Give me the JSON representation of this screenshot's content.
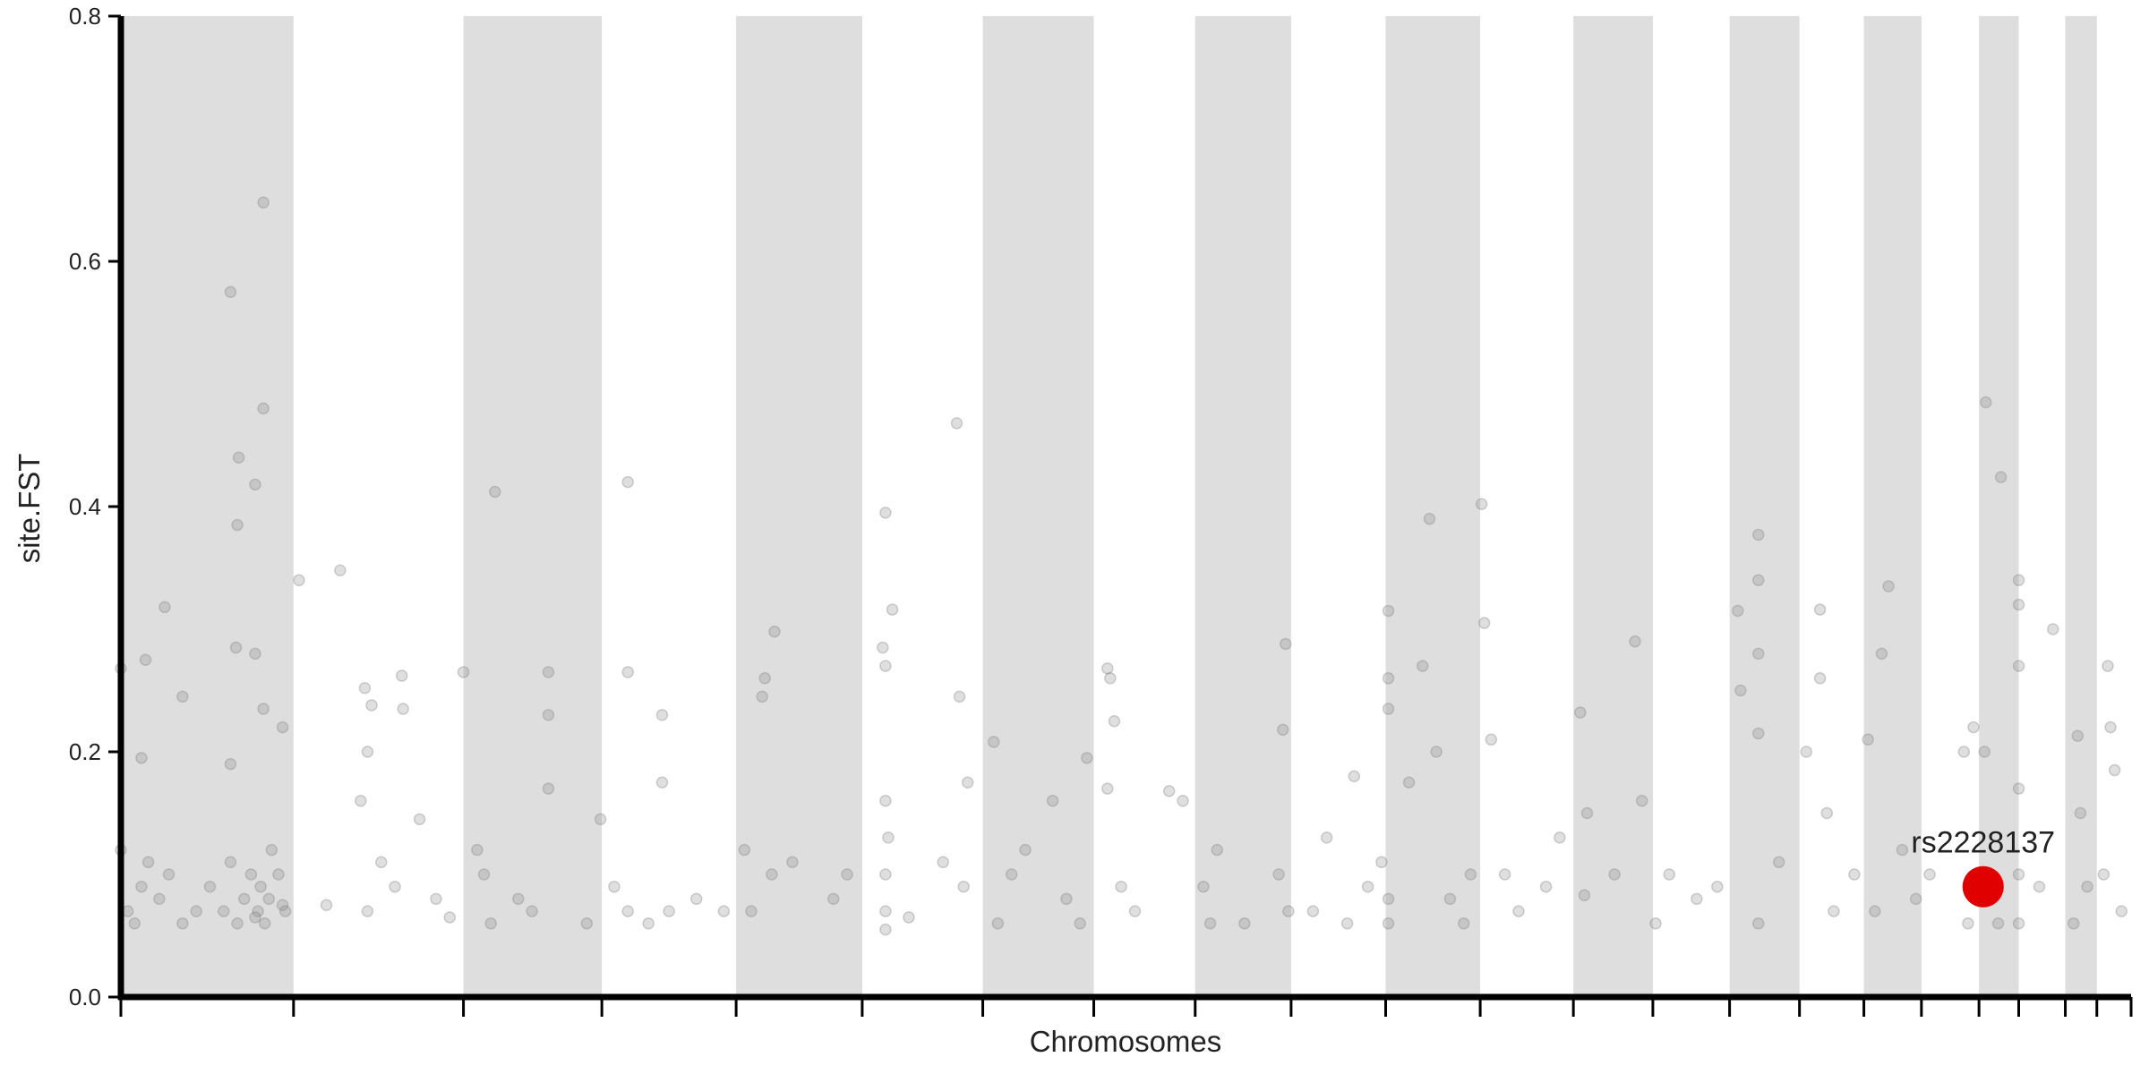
{
  "chart_data": {
    "type": "scatter",
    "xlabel": "Chromosomes",
    "ylabel": "site.FST",
    "xlim": [
      0,
      1467
    ],
    "ylim": [
      0,
      0.8
    ],
    "xticks": [
      0,
      126,
      250,
      351,
      449,
      541,
      629,
      710,
      784,
      854,
      923,
      992,
      1060,
      1118,
      1174,
      1225,
      1272,
      1314,
      1356,
      1385,
      1419,
      1442,
      1467
    ],
    "yticks": [
      {
        "value": 0,
        "label": "0.0"
      },
      0.2,
      0.4,
      0.6,
      0.8
    ],
    "band_color": "#dedede",
    "color": "#808080",
    "x": [
      0,
      5,
      10,
      15,
      20,
      28,
      35,
      45,
      55,
      65,
      75,
      80,
      85,
      90,
      95,
      98,
      100,
      102,
      105,
      108,
      110,
      115,
      118,
      120,
      80,
      104,
      104,
      86,
      85,
      98,
      84,
      98,
      32,
      18,
      45,
      0,
      15,
      80,
      104,
      118,
      130,
      160,
      178,
      180,
      183,
      205,
      206,
      218,
      180,
      200,
      230,
      240,
      150,
      175,
      190,
      250,
      273,
      312,
      312,
      312,
      300,
      270,
      260,
      290,
      340,
      350,
      265,
      370,
      370,
      395,
      395,
      370,
      400,
      420,
      440,
      385,
      360,
      470,
      477,
      468,
      475,
      460,
      455,
      490,
      520,
      530,
      558,
      563,
      556,
      558,
      558,
      558,
      558,
      558,
      560,
      575,
      600,
      610,
      612,
      618,
      615,
      637,
      640,
      650,
      660,
      680,
      690,
      700,
      705,
      720,
      722,
      720,
      725,
      730,
      740,
      765,
      775,
      790,
      795,
      800,
      820,
      845,
      850,
      848,
      852,
      870,
      880,
      895,
      900,
      910,
      920,
      925,
      925,
      925,
      925,
      925,
      940,
      955,
      950,
      960,
      970,
      980,
      985,
      993,
      995,
      1000,
      1010,
      1020,
      1040,
      1050,
      1065,
      1070,
      1068,
      1090,
      1105,
      1110,
      1120,
      1130,
      1150,
      1165,
      1180,
      1182,
      1195,
      1195,
      1195,
      1195,
      1195,
      1210,
      1230,
      1240,
      1240,
      1245,
      1250,
      1265,
      1275,
      1290,
      1285,
      1280,
      1300,
      1310,
      1320,
      1345,
      1348,
      1352,
      1361,
      1372,
      1360,
      1365,
      1370,
      1385,
      1385,
      1385,
      1385,
      1385,
      1385,
      1400,
      1410,
      1428,
      1430,
      1425,
      1435,
      1450,
      1452,
      1455,
      1460,
      1447
    ],
    "values": [
      0.12,
      0.07,
      0.06,
      0.09,
      0.11,
      0.08,
      0.1,
      0.06,
      0.07,
      0.09,
      0.07,
      0.11,
      0.06,
      0.08,
      0.1,
      0.065,
      0.07,
      0.09,
      0.06,
      0.08,
      0.12,
      0.1,
      0.075,
      0.07,
      0.575,
      0.648,
      0.48,
      0.44,
      0.385,
      0.418,
      0.285,
      0.28,
      0.318,
      0.275,
      0.245,
      0.268,
      0.195,
      0.19,
      0.235,
      0.22,
      0.34,
      0.348,
      0.252,
      0.2,
      0.238,
      0.262,
      0.235,
      0.145,
      0.07,
      0.09,
      0.08,
      0.065,
      0.075,
      0.16,
      0.11,
      0.265,
      0.412,
      0.265,
      0.23,
      0.17,
      0.07,
      0.06,
      0.12,
      0.08,
      0.06,
      0.145,
      0.1,
      0.42,
      0.265,
      0.23,
      0.175,
      0.07,
      0.07,
      0.08,
      0.07,
      0.06,
      0.09,
      0.26,
      0.298,
      0.245,
      0.1,
      0.07,
      0.12,
      0.11,
      0.08,
      0.1,
      0.395,
      0.316,
      0.285,
      0.27,
      0.16,
      0.1,
      0.07,
      0.055,
      0.13,
      0.065,
      0.11,
      0.468,
      0.245,
      0.175,
      0.09,
      0.208,
      0.06,
      0.1,
      0.12,
      0.16,
      0.08,
      0.06,
      0.195,
      0.268,
      0.26,
      0.17,
      0.225,
      0.09,
      0.07,
      0.168,
      0.16,
      0.09,
      0.06,
      0.12,
      0.06,
      0.1,
      0.288,
      0.218,
      0.07,
      0.07,
      0.13,
      0.06,
      0.18,
      0.09,
      0.11,
      0.315,
      0.26,
      0.235,
      0.08,
      0.06,
      0.175,
      0.39,
      0.27,
      0.2,
      0.08,
      0.06,
      0.1,
      0.402,
      0.305,
      0.21,
      0.1,
      0.07,
      0.09,
      0.13,
      0.232,
      0.15,
      0.083,
      0.1,
      0.29,
      0.16,
      0.06,
      0.1,
      0.08,
      0.09,
      0.315,
      0.25,
      0.377,
      0.34,
      0.28,
      0.215,
      0.06,
      0.11,
      0.2,
      0.316,
      0.26,
      0.15,
      0.07,
      0.1,
      0.21,
      0.335,
      0.28,
      0.07,
      0.12,
      0.08,
      0.1,
      0.2,
      0.06,
      0.22,
      0.485,
      0.424,
      0.2,
      0.08,
      0.06,
      0.34,
      0.32,
      0.27,
      0.17,
      0.1,
      0.06,
      0.09,
      0.3,
      0.213,
      0.15,
      0.06,
      0.09,
      0.27,
      0.22,
      0.185,
      0.07,
      0.1
    ],
    "highlight": {
      "label": "rs2228137",
      "x": 1359,
      "y": 0.09,
      "color": "#e00000"
    }
  }
}
